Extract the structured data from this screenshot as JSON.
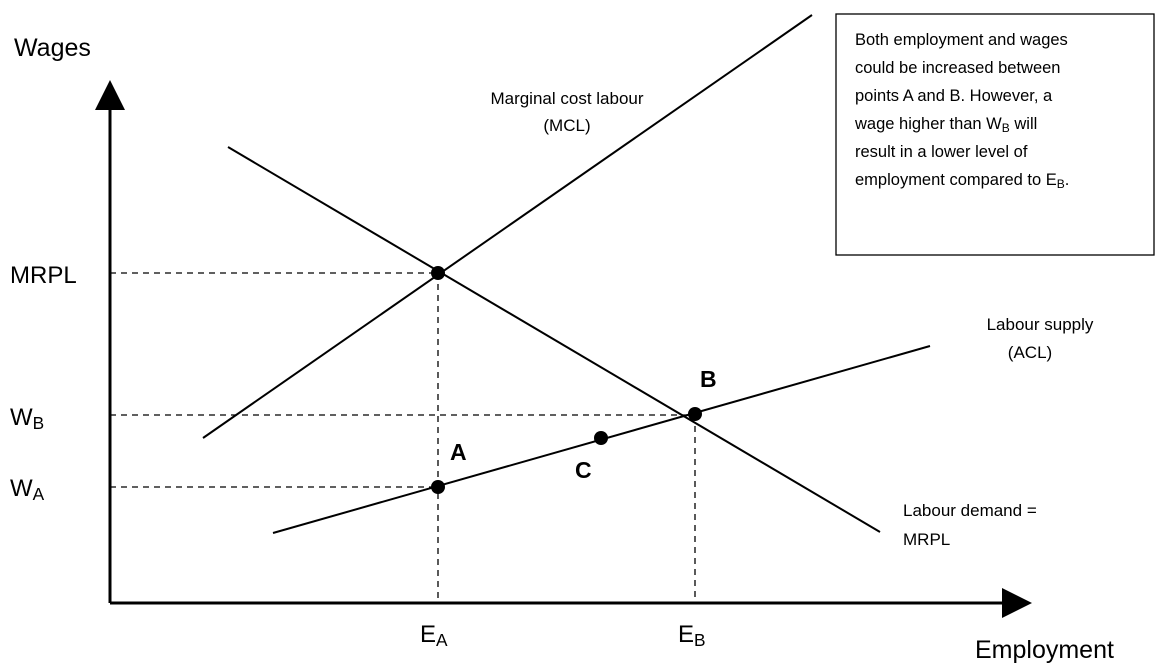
{
  "axes": {
    "y_label": "Wages",
    "x_label": "Employment"
  },
  "y_labels": [
    {
      "text": "MRPL"
    },
    {
      "text": "W",
      "sub": "B"
    },
    {
      "text": "W",
      "sub": "A"
    }
  ],
  "x_labels": [
    {
      "text": "E",
      "sub": "A"
    },
    {
      "text": "E",
      "sub": "B"
    }
  ],
  "curves": {
    "mcl": [
      "Marginal cost labour",
      "(MCL)"
    ],
    "supply": [
      "Labour supply",
      "(ACL)"
    ],
    "demand": [
      "Labour demand =",
      "MRPL"
    ]
  },
  "points": {
    "a": "A",
    "b": "B",
    "c": "C"
  },
  "note": {
    "lines": [
      [
        "Both employment and wages"
      ],
      [
        "could be increased between"
      ],
      [
        "points A and B.  However, a"
      ],
      [
        "wage higher than W",
        "B",
        " will"
      ],
      [
        "result in a lower level of"
      ],
      [
        "employment compared to E",
        "B",
        "."
      ]
    ]
  }
}
